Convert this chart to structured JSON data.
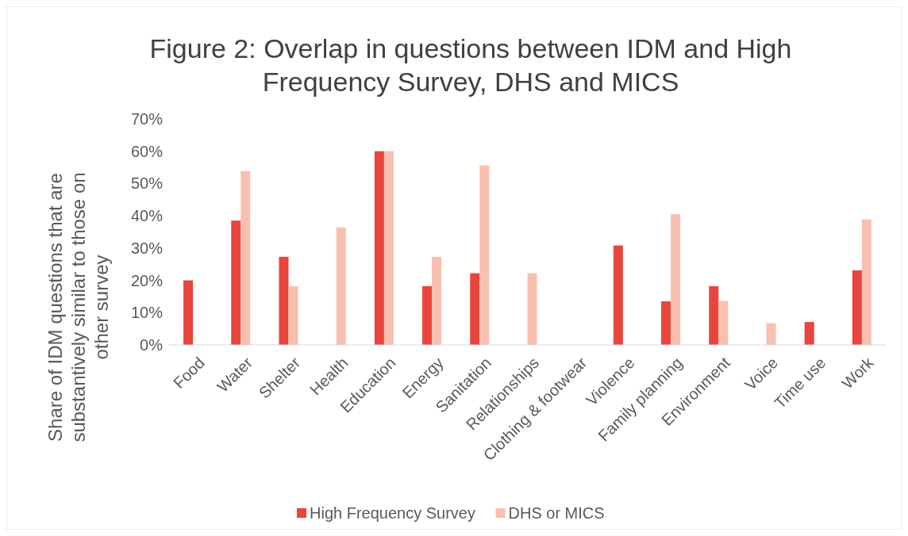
{
  "chart_data": {
    "type": "bar",
    "title": "Figure 2: Overlap in questions between IDM and High Frequency Survey, DHS and MICS",
    "ylabel": "Share of IDM questions that are substantively similar to those on other survey",
    "categories": [
      "Food",
      "Water",
      "Shelter",
      "Health",
      "Education",
      "Energy",
      "Sanitation",
      "Relationships",
      "Clothing & footwear",
      "Violence",
      "Family planning",
      "Environment",
      "Voice",
      "Time use",
      "Work"
    ],
    "series": [
      {
        "name": "High Frequency Survey",
        "color": "#e8453c",
        "values": [
          20,
          38.5,
          27.3,
          null,
          60,
          18.2,
          22.2,
          null,
          null,
          30.8,
          13.5,
          18.2,
          null,
          7.1,
          23.1
        ]
      },
      {
        "name": "DHS or MICS",
        "color": "#f8c0b0",
        "values": [
          null,
          53.8,
          18.2,
          36.4,
          60,
          27.3,
          55.6,
          22.2,
          null,
          null,
          40.5,
          13.6,
          6.7,
          null,
          38.9
        ]
      }
    ],
    "ylim": [
      0,
      70
    ],
    "yticks": [
      {
        "value": 0,
        "label": "0%"
      },
      {
        "value": 10,
        "label": "10%"
      },
      {
        "value": 20,
        "label": "20%"
      },
      {
        "value": 30,
        "label": "30%"
      },
      {
        "value": 40,
        "label": "40%"
      },
      {
        "value": 50,
        "label": "50%"
      },
      {
        "value": 60,
        "label": "60%"
      },
      {
        "value": 70,
        "label": "70%"
      }
    ],
    "grid": false,
    "legend": "bottom"
  }
}
